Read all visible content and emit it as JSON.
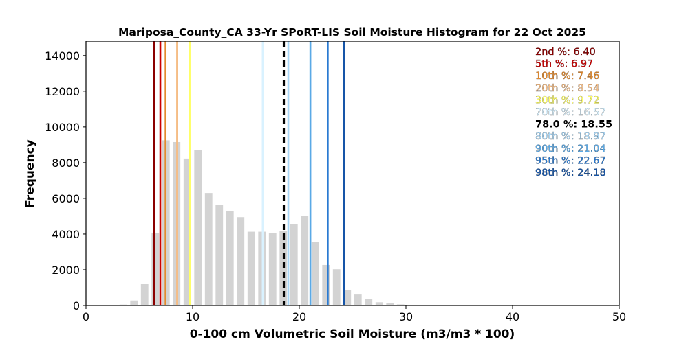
{
  "chart_data": {
    "type": "bar",
    "title": "Mariposa_County_CA 33-Yr SPoRT-LIS Soil Moisture Histogram for 22 Oct 2025",
    "xlabel": "0-100 cm Volumetric Soil Moisture (m3/m3 * 100)",
    "ylabel": "Frequency",
    "xlim": [
      0,
      50
    ],
    "ylim": [
      0,
      14800
    ],
    "xticks": [
      0,
      10,
      20,
      30,
      40,
      50
    ],
    "yticks": [
      0,
      2000,
      4000,
      6000,
      8000,
      10000,
      12000,
      14000
    ],
    "bar_color": "#d3d3d3",
    "bar_width": 0.7,
    "bins": [
      {
        "x": 3.5,
        "count": 50
      },
      {
        "x": 4.5,
        "count": 280
      },
      {
        "x": 5.5,
        "count": 1230
      },
      {
        "x": 6.5,
        "count": 4050
      },
      {
        "x": 7.5,
        "count": 9250
      },
      {
        "x": 8.5,
        "count": 9150
      },
      {
        "x": 9.5,
        "count": 8230
      },
      {
        "x": 10.5,
        "count": 8700
      },
      {
        "x": 11.5,
        "count": 6300
      },
      {
        "x": 12.5,
        "count": 5650
      },
      {
        "x": 13.5,
        "count": 5270
      },
      {
        "x": 14.5,
        "count": 4950
      },
      {
        "x": 15.5,
        "count": 4130
      },
      {
        "x": 16.5,
        "count": 4130
      },
      {
        "x": 17.5,
        "count": 4050
      },
      {
        "x": 18.5,
        "count": 4150
      },
      {
        "x": 19.5,
        "count": 4550
      },
      {
        "x": 20.5,
        "count": 5030
      },
      {
        "x": 21.5,
        "count": 3550
      },
      {
        "x": 22.5,
        "count": 2270
      },
      {
        "x": 23.5,
        "count": 2030
      },
      {
        "x": 24.5,
        "count": 850
      },
      {
        "x": 25.5,
        "count": 650
      },
      {
        "x": 26.5,
        "count": 350
      },
      {
        "x": 27.5,
        "count": 180
      },
      {
        "x": 28.5,
        "count": 120
      },
      {
        "x": 29.5,
        "count": 60
      }
    ],
    "percentile_lines": [
      {
        "label": "2nd %",
        "value": 6.4,
        "display": "6.40",
        "color": "#8b0000",
        "dashed": false
      },
      {
        "label": "5th %",
        "value": 6.97,
        "display": "6.97",
        "color": "#cc0000",
        "dashed": false
      },
      {
        "label": "10th %",
        "value": 7.46,
        "display": "7.46",
        "color": "#e38a2d",
        "dashed": false
      },
      {
        "label": "20th %",
        "value": 8.54,
        "display": "8.54",
        "color": "#f5bd86",
        "dashed": false
      },
      {
        "label": "30th %",
        "value": 9.72,
        "display": "9.72",
        "color": "#ffff66",
        "dashed": false
      },
      {
        "label": "70th %",
        "value": 16.57,
        "display": "16.57",
        "color": "#d9f2ff",
        "dashed": false
      },
      {
        "label": "78.0 %",
        "value": 18.55,
        "display": "18.55",
        "color": "#000000",
        "dashed": true
      },
      {
        "label": "80th %",
        "value": 18.97,
        "display": "18.97",
        "color": "#a9d6f5",
        "dashed": false
      },
      {
        "label": "90th %",
        "value": 21.04,
        "display": "21.04",
        "color": "#5aa9e6",
        "dashed": false
      },
      {
        "label": "95th %",
        "value": 22.67,
        "display": "22.67",
        "color": "#2a7ad1",
        "dashed": false
      },
      {
        "label": "98th %",
        "value": 24.18,
        "display": "24.18",
        "color": "#1655a8",
        "dashed": false
      }
    ],
    "legend_placement": "top-right",
    "grid": false
  }
}
